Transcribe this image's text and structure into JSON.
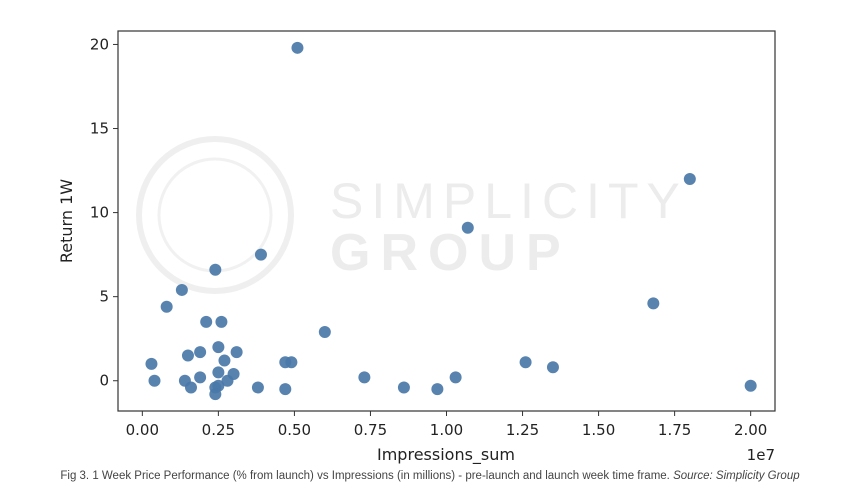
{
  "chart_data": {
    "type": "scatter",
    "xlabel": "Impressions_sum",
    "ylabel": "Return 1W",
    "x_offset_label": "1e7",
    "xlim": [
      -0.08,
      2.08
    ],
    "ylim": [
      -1.8,
      20.8
    ],
    "x_ticks": [
      "0.00",
      "0.25",
      "0.50",
      "0.75",
      "1.00",
      "1.25",
      "1.50",
      "1.75",
      "2.00"
    ],
    "x_tick_values": [
      0,
      0.25,
      0.5,
      0.75,
      1.0,
      1.25,
      1.5,
      1.75,
      2.0
    ],
    "y_ticks": [
      "0",
      "5",
      "10",
      "15",
      "20"
    ],
    "y_tick_values": [
      0,
      5,
      10,
      15,
      20
    ],
    "grid": false,
    "marker_color": "#4a78a8",
    "points": [
      {
        "x": 0.03,
        "y": 1.0
      },
      {
        "x": 0.04,
        "y": 0.0
      },
      {
        "x": 0.08,
        "y": 4.4
      },
      {
        "x": 0.13,
        "y": 5.4
      },
      {
        "x": 0.14,
        "y": 0.0
      },
      {
        "x": 0.15,
        "y": 1.5
      },
      {
        "x": 0.16,
        "y": -0.4
      },
      {
        "x": 0.19,
        "y": 0.2
      },
      {
        "x": 0.19,
        "y": 1.7
      },
      {
        "x": 0.21,
        "y": 3.5
      },
      {
        "x": 0.24,
        "y": 6.6
      },
      {
        "x": 0.24,
        "y": -0.4
      },
      {
        "x": 0.24,
        "y": -0.8
      },
      {
        "x": 0.25,
        "y": -0.3
      },
      {
        "x": 0.25,
        "y": 0.5
      },
      {
        "x": 0.25,
        "y": 2.0
      },
      {
        "x": 0.26,
        "y": 3.5
      },
      {
        "x": 0.27,
        "y": 1.2
      },
      {
        "x": 0.28,
        "y": 0.0
      },
      {
        "x": 0.3,
        "y": 0.4
      },
      {
        "x": 0.31,
        "y": 1.7
      },
      {
        "x": 0.38,
        "y": -0.4
      },
      {
        "x": 0.39,
        "y": 7.5
      },
      {
        "x": 0.47,
        "y": 1.1
      },
      {
        "x": 0.47,
        "y": -0.5
      },
      {
        "x": 0.49,
        "y": 1.1
      },
      {
        "x": 0.51,
        "y": 19.8
      },
      {
        "x": 0.6,
        "y": 2.9
      },
      {
        "x": 0.73,
        "y": 0.2
      },
      {
        "x": 0.86,
        "y": -0.4
      },
      {
        "x": 0.97,
        "y": -0.5
      },
      {
        "x": 1.03,
        "y": 0.2
      },
      {
        "x": 1.07,
        "y": 9.1
      },
      {
        "x": 1.26,
        "y": 1.1
      },
      {
        "x": 1.35,
        "y": 0.8
      },
      {
        "x": 1.68,
        "y": 4.6
      },
      {
        "x": 1.8,
        "y": 12.0
      },
      {
        "x": 2.0,
        "y": -0.3
      }
    ]
  },
  "watermark": {
    "line1": "SIMPLICITY",
    "line2": "GROUP"
  },
  "caption": {
    "text": "Fig 3. 1 Week Price Performance (% from launch) vs Impressions (in millions) - pre-launch and launch week time frame.",
    "source": "Source: Simplicity Group"
  }
}
